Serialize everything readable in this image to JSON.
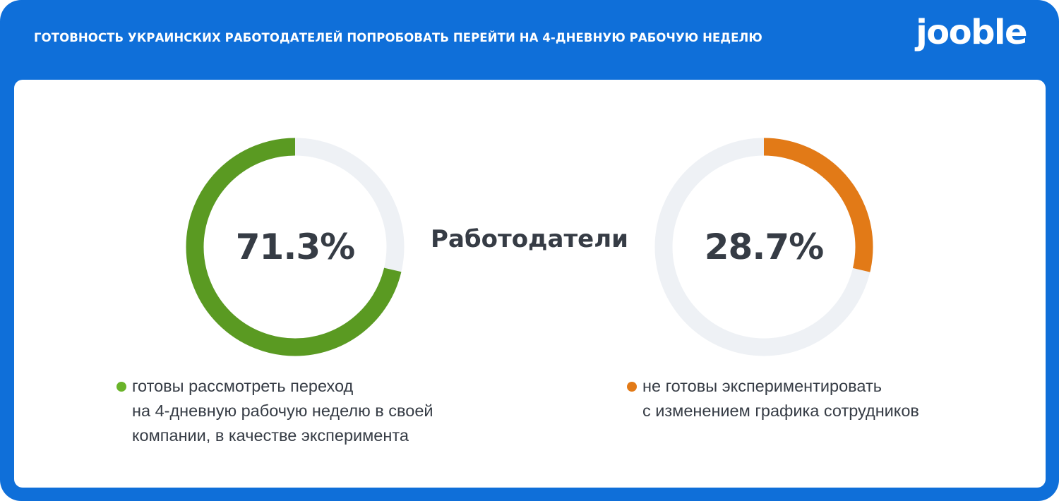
{
  "header": {
    "title": "ГОТОВНОСТЬ УКРАИНСКИХ РАБОТОДАТЕЛЕЙ ПОПРОБОВАТЬ ПЕРЕЙТИ НА 4-ДНЕВНУЮ РАБОЧУЮ НЕДЕЛЮ",
    "logo": "jooble"
  },
  "center_label": "Работодатели",
  "colors": {
    "frame": "#0f6fd9",
    "green": "#5a9a22",
    "green_dot": "#6ab42a",
    "orange": "#e27a17",
    "track": "#eef1f5",
    "text": "#363c45"
  },
  "donuts": [
    {
      "value_label": "71.3%",
      "value": 71.3,
      "color": "#5a9a22",
      "direction": "counterclockwise"
    },
    {
      "value_label": "28.7%",
      "value": 28.7,
      "color": "#e27a17",
      "direction": "clockwise"
    }
  ],
  "legend": [
    {
      "text": "готовы рассмотреть переход\nна 4-дневную рабочую неделю в своей\nкомпании, в качестве эксперимента",
      "color": "#6ab42a"
    },
    {
      "text": "не готовы экспериментировать\nс изменением графика сотрудников",
      "color": "#e27a17"
    }
  ],
  "chart_data": {
    "type": "pie",
    "title": "ГОТОВНОСТЬ УКРАИНСКИХ РАБОТОДАТЕЛЕЙ ПОПРОБОВАТЬ ПЕРЕЙТИ НА 4-ДНЕВНУЮ РАБОЧУЮ НЕДЕЛЮ",
    "subtitle": "Работодатели",
    "categories": [
      "готовы рассмотреть переход на 4-дневную рабочую неделю в своей компании, в качестве эксперимента",
      "не готовы экспериментировать с изменением графика сотрудников"
    ],
    "values": [
      71.3,
      28.7
    ],
    "unit": "%",
    "colors": [
      "#5a9a22",
      "#e27a17"
    ],
    "style": "two separate donut rings, each showing one share against a light track",
    "legend_position": "below each donut"
  }
}
